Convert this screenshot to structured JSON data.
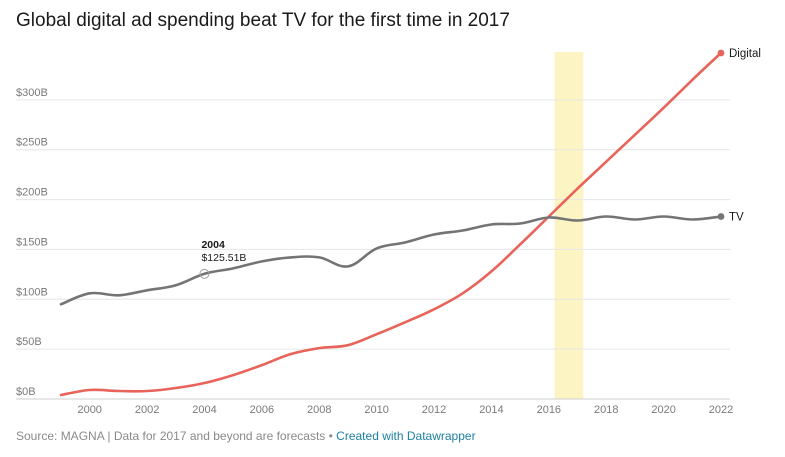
{
  "colors": {
    "digital": "#e8645a",
    "tv": "#747474",
    "highlight": "#fdf4c4",
    "grid": "#e6e6e6",
    "credit": "#1d81a2"
  },
  "footer": {
    "source": "Source: MAGNA | Data for 2017 and beyond are forecasts",
    "separator": " • ",
    "credit": "Created with Datawrapper"
  },
  "chart_data": {
    "type": "line",
    "title": "Global digital ad spending beat TV for the first time in 2017",
    "xlabel": "",
    "ylabel": "",
    "xlim": [
      1999,
      2022
    ],
    "ylim": [
      0,
      350
    ],
    "x_ticks": [
      2000,
      2002,
      2004,
      2006,
      2008,
      2010,
      2012,
      2014,
      2016,
      2018,
      2020,
      2022
    ],
    "y_ticks": [
      {
        "value": 0,
        "label": "$0B"
      },
      {
        "value": 50,
        "label": "$50B"
      },
      {
        "value": 100,
        "label": "$100B"
      },
      {
        "value": 150,
        "label": "$150B"
      },
      {
        "value": 200,
        "label": "$200B"
      },
      {
        "value": 250,
        "label": "$250B"
      },
      {
        "value": 300,
        "label": "$300B"
      }
    ],
    "grid": true,
    "highlight_range": [
      2016.2,
      2017.2
    ],
    "x": [
      1999,
      2000,
      2001,
      2002,
      2003,
      2004,
      2005,
      2006,
      2007,
      2008,
      2009,
      2010,
      2011,
      2012,
      2013,
      2014,
      2015,
      2016,
      2017,
      2018,
      2019,
      2020,
      2021,
      2022
    ],
    "series": [
      {
        "name": "Digital",
        "key": "digital",
        "values": [
          4,
          9,
          8,
          8,
          11,
          16,
          24,
          34,
          45,
          51,
          54,
          65,
          77,
          90,
          106,
          128,
          155,
          183,
          211,
          238,
          265,
          292,
          320,
          347
        ]
      },
      {
        "name": "TV",
        "key": "tv",
        "values": [
          95,
          106,
          104,
          109,
          114,
          125.51,
          131,
          138,
          142,
          142,
          133,
          151,
          157,
          165,
          169,
          175,
          176,
          182,
          179,
          183,
          180,
          183,
          180,
          183
        ]
      }
    ],
    "annotation": {
      "year": "2004",
      "value": "$125.51B",
      "x": 2004,
      "y": 125.51
    }
  }
}
